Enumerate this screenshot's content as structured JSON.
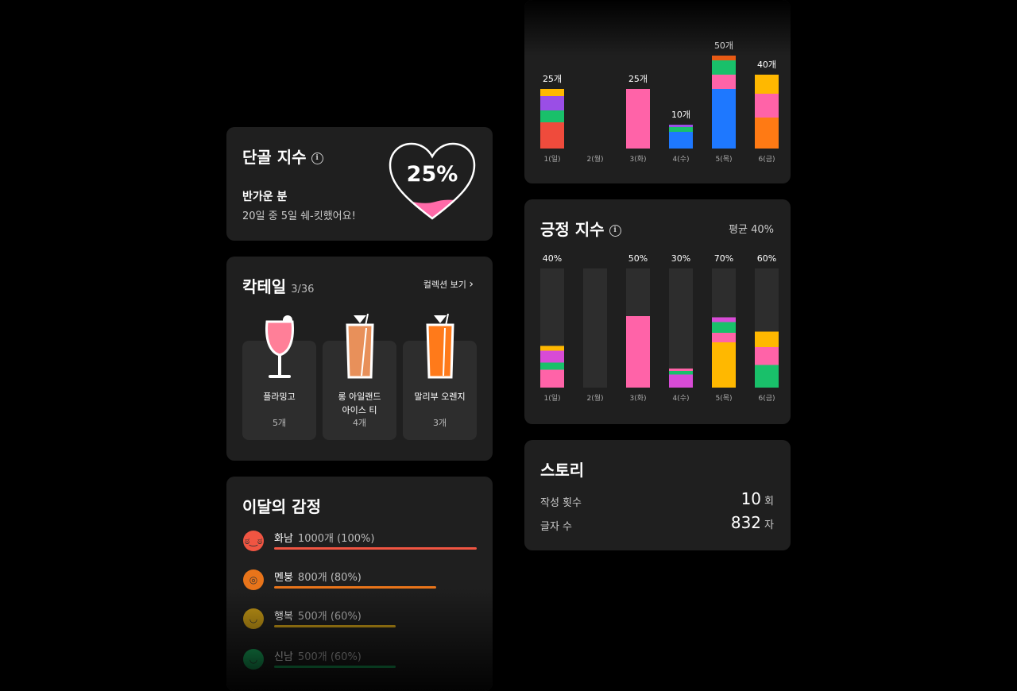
{
  "dangol": {
    "title": "단골 지수",
    "info_icon": "i",
    "percent": "25%",
    "greeting": "반가운 분",
    "summary": "20일 중 5일 쉐-킷했어요!",
    "accent": "#ff6aa8"
  },
  "cocktail": {
    "title": "칵테일",
    "count": "3/36",
    "collection_link": "컬렉션 보기",
    "items": [
      {
        "name": "플라밍고",
        "count": "5개",
        "icon": "wine-glass-icon",
        "color": "#ff7f98"
      },
      {
        "name": "롱 아일랜드\n아이스 티",
        "count": "4개",
        "icon": "tall-glass-icon",
        "color": "#e8905a"
      },
      {
        "name": "말리부 오렌지",
        "count": "3개",
        "icon": "tall-glass-icon",
        "color": "#ff7a1a"
      }
    ]
  },
  "emotion": {
    "title": "이달의 감정",
    "items": [
      {
        "name": "화남",
        "value": "1000개 (100%)",
        "fraction": 1.0,
        "color": "#f05542",
        "face": "angry-face-icon"
      },
      {
        "name": "멘붕",
        "value": "800개 (80%)",
        "fraction": 0.8,
        "color": "#e8741a",
        "face": "shocked-face-icon"
      },
      {
        "name": "행복",
        "value": "500개 (60%)",
        "fraction": 0.6,
        "color": "#c79a16",
        "face": "smile-face-icon"
      },
      {
        "name": "신남",
        "value": "500개 (60%)",
        "fraction": 0.6,
        "color": "#1bb865",
        "face": "excited-face-icon"
      }
    ]
  },
  "chart_data": [
    {
      "type": "bar",
      "stacked": true,
      "categories": [
        "1(일)",
        "2(월)",
        "3(화)",
        "4(수)",
        "5(목)",
        "6(금)"
      ],
      "labels": [
        "25개",
        "",
        "25개",
        "10개",
        "50개",
        "40개"
      ],
      "totals": [
        25,
        0,
        25,
        10,
        50,
        40
      ],
      "segments": [
        [
          {
            "value": 11,
            "color": "#ef4b3c"
          },
          {
            "value": 5,
            "color": "#19c06a"
          },
          {
            "value": 6,
            "color": "#9a4ee6"
          },
          {
            "value": 3,
            "color": "#ffb800"
          }
        ],
        [],
        [
          {
            "value": 25,
            "color": "#ff63a8"
          }
        ],
        [
          {
            "value": 7,
            "color": "#1e78ff"
          },
          {
            "value": 2,
            "color": "#19c06a"
          },
          {
            "value": 1,
            "color": "#9a4ee6"
          }
        ],
        [
          {
            "value": 25,
            "color": "#1e78ff"
          },
          {
            "value": 6,
            "color": "#ff63a8"
          },
          {
            "value": 6,
            "color": "#19c06a"
          },
          {
            "value": 2,
            "color": "#e85a14"
          }
        ],
        [
          {
            "value": 13,
            "color": "#ff7a14"
          },
          {
            "value": 10,
            "color": "#ff63a8"
          },
          {
            "value": 8,
            "color": "#ffb800"
          }
        ]
      ]
    },
    {
      "type": "bar",
      "stacked": true,
      "title": "긍정 지수",
      "average_label": "평균 40%",
      "categories": [
        "1(일)",
        "2(월)",
        "3(화)",
        "4(수)",
        "5(목)",
        "6(금)"
      ],
      "labels": [
        "40%",
        "",
        "50%",
        "30%",
        "70%",
        "60%"
      ],
      "ylim": [
        0,
        100
      ],
      "segments": [
        [
          {
            "value": 15,
            "color": "#ff63a8"
          },
          {
            "value": 6,
            "color": "#19c06a"
          },
          {
            "value": 10,
            "color": "#d84bd6"
          },
          {
            "value": 4,
            "color": "#ffb800"
          }
        ],
        [],
        [
          {
            "value": 60,
            "color": "#ff63a8"
          }
        ],
        [
          {
            "value": 11,
            "color": "#d84bd6"
          },
          {
            "value": 3,
            "color": "#19c06a"
          },
          {
            "value": 2,
            "color": "#ff63a8"
          }
        ],
        [
          {
            "value": 38,
            "color": "#ffb800"
          },
          {
            "value": 8,
            "color": "#ff63a8"
          },
          {
            "value": 9,
            "color": "#19c06a"
          },
          {
            "value": 4,
            "color": "#d84bd6"
          }
        ],
        [
          {
            "value": 19,
            "color": "#19c06a"
          },
          {
            "value": 15,
            "color": "#ff63a8"
          },
          {
            "value": 13,
            "color": "#ffb800"
          }
        ]
      ]
    }
  ],
  "story": {
    "title": "스토리",
    "rows": [
      {
        "label": "작성 횟수",
        "value": "10",
        "unit": "회"
      },
      {
        "label": "글자 수",
        "value": "832",
        "unit": "자"
      }
    ]
  }
}
